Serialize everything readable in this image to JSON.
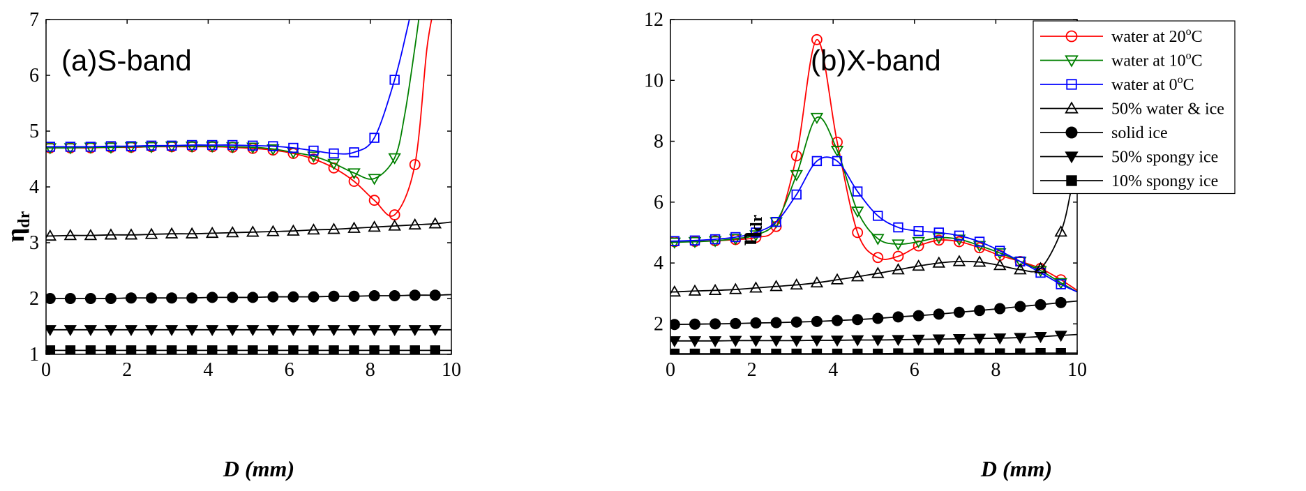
{
  "chart_data": [
    {
      "type": "line",
      "title": "(a)S-band",
      "xlabel": "D (mm)",
      "ylabel": "η",
      "ylabel_sub": "dr",
      "xlim": [
        0,
        10
      ],
      "ylim": [
        1,
        7
      ],
      "xticks": [
        0,
        2,
        4,
        6,
        8,
        10
      ],
      "yticks": [
        1,
        2,
        3,
        4,
        5,
        6,
        7
      ],
      "grid": false,
      "legend": null,
      "series": [
        {
          "name": "water at 20°C",
          "color": "#ff0000",
          "marker": "circle-open",
          "x": [
            0.1,
            0.6,
            1.1,
            1.6,
            2.1,
            2.6,
            3.1,
            3.6,
            4.1,
            4.6,
            5.1,
            5.6,
            6.1,
            6.6,
            7.1,
            7.6,
            8.1,
            8.6,
            9.1
          ],
          "y": [
            4.7,
            4.7,
            4.7,
            4.71,
            4.71,
            4.72,
            4.72,
            4.72,
            4.72,
            4.71,
            4.69,
            4.66,
            4.6,
            4.5,
            4.34,
            4.1,
            3.76,
            3.5,
            4.4
          ],
          "tail": [
            [
              9.4,
              6.5
            ],
            [
              9.6,
              7.3
            ]
          ]
        },
        {
          "name": "water at 10°C",
          "color": "#008000",
          "marker": "triangle-down-open",
          "x": [
            0.1,
            0.6,
            1.1,
            1.6,
            2.1,
            2.6,
            3.1,
            3.6,
            4.1,
            4.6,
            5.1,
            5.6,
            6.1,
            6.6,
            7.1,
            7.6,
            8.1,
            8.6
          ],
          "y": [
            4.7,
            4.7,
            4.71,
            4.71,
            4.72,
            4.72,
            4.73,
            4.73,
            4.73,
            4.72,
            4.71,
            4.68,
            4.62,
            4.55,
            4.42,
            4.25,
            4.15,
            4.52
          ],
          "tail": [
            [
              8.85,
              5.3
            ],
            [
              9.1,
              6.5
            ],
            [
              9.25,
              7.3
            ]
          ]
        },
        {
          "name": "water at 0°C",
          "color": "#0000ff",
          "marker": "square-open",
          "x": [
            0.1,
            0.6,
            1.1,
            1.6,
            2.1,
            2.6,
            3.1,
            3.6,
            4.1,
            4.6,
            5.1,
            5.6,
            6.1,
            6.6,
            7.1,
            7.6,
            8.1,
            8.6
          ],
          "y": [
            4.72,
            4.72,
            4.72,
            4.73,
            4.73,
            4.74,
            4.74,
            4.75,
            4.75,
            4.75,
            4.74,
            4.73,
            4.7,
            4.65,
            4.6,
            4.62,
            4.88,
            5.92
          ],
          "tail": [
            [
              8.9,
              6.8
            ],
            [
              9.05,
              7.3
            ]
          ]
        },
        {
          "name": "50% water & ice",
          "color": "#000000",
          "marker": "triangle-up-open",
          "x": [
            0.1,
            0.6,
            1.1,
            1.6,
            2.1,
            2.6,
            3.1,
            3.6,
            4.1,
            4.6,
            5.1,
            5.6,
            6.1,
            6.6,
            7.1,
            7.6,
            8.1,
            8.6,
            9.1,
            9.6
          ],
          "y": [
            3.12,
            3.13,
            3.13,
            3.14,
            3.14,
            3.15,
            3.16,
            3.16,
            3.17,
            3.18,
            3.19,
            3.2,
            3.21,
            3.23,
            3.24,
            3.26,
            3.28,
            3.3,
            3.32,
            3.34
          ],
          "tail": [
            [
              10,
              3.37
            ]
          ]
        },
        {
          "name": "solid ice",
          "color": "#000000",
          "marker": "circle-filled",
          "x": [
            0.1,
            0.6,
            1.1,
            1.6,
            2.1,
            2.6,
            3.1,
            3.6,
            4.1,
            4.6,
            5.1,
            5.6,
            6.1,
            6.6,
            7.1,
            7.6,
            8.1,
            8.6,
            9.1,
            9.6
          ],
          "y": [
            2.0,
            2.0,
            2.0,
            2.0,
            2.01,
            2.01,
            2.01,
            2.01,
            2.02,
            2.02,
            2.02,
            2.03,
            2.03,
            2.03,
            2.04,
            2.04,
            2.05,
            2.05,
            2.06,
            2.06
          ],
          "tail": [
            [
              10,
              2.07
            ]
          ]
        },
        {
          "name": "50% spongy ice",
          "color": "#000000",
          "marker": "triangle-down-filled",
          "x": [
            0.1,
            0.6,
            1.1,
            1.6,
            2.1,
            2.6,
            3.1,
            3.6,
            4.1,
            4.6,
            5.1,
            5.6,
            6.1,
            6.6,
            7.1,
            7.6,
            8.1,
            8.6,
            9.1,
            9.6
          ],
          "y": [
            1.44,
            1.44,
            1.44,
            1.44,
            1.44,
            1.44,
            1.44,
            1.44,
            1.44,
            1.44,
            1.44,
            1.44,
            1.44,
            1.44,
            1.44,
            1.44,
            1.44,
            1.44,
            1.44,
            1.44
          ],
          "tail": [
            [
              10,
              1.44
            ]
          ]
        },
        {
          "name": "10% spongy ice",
          "color": "#000000",
          "marker": "square-filled",
          "x": [
            0.1,
            0.6,
            1.1,
            1.6,
            2.1,
            2.6,
            3.1,
            3.6,
            4.1,
            4.6,
            5.1,
            5.6,
            6.1,
            6.6,
            7.1,
            7.6,
            8.1,
            8.6,
            9.1,
            9.6
          ],
          "y": [
            1.07,
            1.07,
            1.07,
            1.07,
            1.07,
            1.07,
            1.07,
            1.07,
            1.07,
            1.07,
            1.07,
            1.07,
            1.07,
            1.07,
            1.07,
            1.07,
            1.07,
            1.07,
            1.07,
            1.07
          ],
          "tail": [
            [
              10,
              1.07
            ]
          ]
        }
      ]
    },
    {
      "type": "line",
      "title": "(b)X-band",
      "xlabel": "D (mm)",
      "ylabel": "η",
      "ylabel_sub": "dr",
      "xlim": [
        0,
        10
      ],
      "ylim": [
        1,
        12
      ],
      "xticks": [
        0,
        2,
        4,
        6,
        8,
        10
      ],
      "yticks": [
        2,
        4,
        6,
        8,
        10,
        12
      ],
      "grid": false,
      "legend": "top-right",
      "series": [
        {
          "name": "water at 20°C",
          "legend_main": "water at 20",
          "legend_sup": "o",
          "legend_tail": "C",
          "color": "#ff0000",
          "marker": "circle-open",
          "x": [
            0.1,
            0.6,
            1.1,
            1.6,
            2.1,
            2.6,
            3.1,
            3.6,
            4.1,
            4.6,
            5.1,
            5.6,
            6.1,
            6.6,
            7.1,
            7.6,
            8.1,
            8.6,
            9.1,
            9.6
          ],
          "y": [
            4.7,
            4.71,
            4.73,
            4.77,
            4.84,
            5.2,
            7.52,
            11.34,
            7.97,
            5.0,
            4.18,
            4.22,
            4.56,
            4.75,
            4.7,
            4.5,
            4.25,
            4.05,
            3.82,
            3.45
          ],
          "tail": [
            [
              10,
              3.1
            ]
          ]
        },
        {
          "name": "water at 10°C",
          "legend_main": "water at 10",
          "legend_sup": "o",
          "legend_tail": "C",
          "color": "#008000",
          "marker": "triangle-down-open",
          "x": [
            0.1,
            0.6,
            1.1,
            1.6,
            2.1,
            2.6,
            3.1,
            3.6,
            4.1,
            4.6,
            5.1,
            5.6,
            6.1,
            6.6,
            7.1,
            7.6,
            8.1,
            8.6,
            9.1,
            9.6
          ],
          "y": [
            4.68,
            4.7,
            4.73,
            4.8,
            4.92,
            5.35,
            6.9,
            8.78,
            7.7,
            5.7,
            4.8,
            4.62,
            4.7,
            4.83,
            4.78,
            4.57,
            4.33,
            4.05,
            3.75,
            3.35
          ],
          "tail": [
            [
              10,
              3.05
            ]
          ]
        },
        {
          "name": "water at 0°C",
          "legend_main": "water at 0",
          "legend_sup": "o",
          "legend_tail": "C",
          "color": "#0000ff",
          "marker": "square-open",
          "x": [
            0.1,
            0.6,
            1.1,
            1.6,
            2.1,
            2.6,
            3.1,
            3.6,
            4.1,
            4.6,
            5.1,
            5.6,
            6.1,
            6.6,
            7.1,
            7.6,
            8.1,
            8.6,
            9.1,
            9.6
          ],
          "y": [
            4.72,
            4.74,
            4.78,
            4.85,
            5.0,
            5.35,
            6.25,
            7.35,
            7.35,
            6.35,
            5.55,
            5.17,
            5.05,
            5.0,
            4.9,
            4.7,
            4.4,
            4.05,
            3.68,
            3.3
          ],
          "tail": [
            [
              10,
              3.05
            ]
          ]
        },
        {
          "name": "50% water & ice",
          "color": "#000000",
          "marker": "triangle-up-open",
          "x": [
            0.1,
            0.6,
            1.1,
            1.6,
            2.1,
            2.6,
            3.1,
            3.6,
            4.1,
            4.6,
            5.1,
            5.6,
            6.1,
            6.6,
            7.1,
            7.6,
            8.1,
            8.6,
            9.1,
            9.6
          ],
          "y": [
            3.05,
            3.08,
            3.1,
            3.13,
            3.18,
            3.23,
            3.28,
            3.35,
            3.45,
            3.55,
            3.66,
            3.78,
            3.9,
            4.0,
            4.05,
            4.03,
            3.92,
            3.78,
            3.82,
            5.02
          ],
          "tail": [
            [
              9.85,
              6.4
            ],
            [
              10,
              7.6
            ]
          ]
        },
        {
          "name": "solid ice",
          "color": "#000000",
          "marker": "circle-filled",
          "x": [
            0.1,
            0.6,
            1.1,
            1.6,
            2.1,
            2.6,
            3.1,
            3.6,
            4.1,
            4.6,
            5.1,
            5.6,
            6.1,
            6.6,
            7.1,
            7.6,
            8.1,
            8.6,
            9.1,
            9.6
          ],
          "y": [
            1.98,
            1.99,
            2.0,
            2.01,
            2.03,
            2.04,
            2.06,
            2.08,
            2.11,
            2.14,
            2.18,
            2.23,
            2.27,
            2.32,
            2.38,
            2.44,
            2.5,
            2.57,
            2.63,
            2.7
          ],
          "tail": [
            [
              10,
              2.75
            ]
          ]
        },
        {
          "name": "50% spongy ice",
          "color": "#000000",
          "marker": "triangle-down-filled",
          "x": [
            0.1,
            0.6,
            1.1,
            1.6,
            2.1,
            2.6,
            3.1,
            3.6,
            4.1,
            4.6,
            5.1,
            5.6,
            6.1,
            6.6,
            7.1,
            7.6,
            8.1,
            8.6,
            9.1,
            9.6
          ],
          "y": [
            1.44,
            1.44,
            1.44,
            1.45,
            1.45,
            1.45,
            1.45,
            1.46,
            1.46,
            1.47,
            1.47,
            1.48,
            1.49,
            1.5,
            1.51,
            1.52,
            1.53,
            1.55,
            1.58,
            1.62
          ],
          "tail": [
            [
              10,
              1.65
            ]
          ]
        },
        {
          "name": "10% spongy ice",
          "color": "#000000",
          "marker": "square-filled",
          "x": [
            0.1,
            0.6,
            1.1,
            1.6,
            2.1,
            2.6,
            3.1,
            3.6,
            4.1,
            4.6,
            5.1,
            5.6,
            6.1,
            6.6,
            7.1,
            7.6,
            8.1,
            8.6,
            9.1,
            9.6
          ],
          "y": [
            1.02,
            1.02,
            1.02,
            1.02,
            1.02,
            1.02,
            1.02,
            1.02,
            1.02,
            1.02,
            1.02,
            1.03,
            1.03,
            1.03,
            1.03,
            1.03,
            1.03,
            1.03,
            1.04,
            1.04
          ],
          "tail": [
            [
              10,
              1.04
            ]
          ]
        }
      ]
    }
  ]
}
